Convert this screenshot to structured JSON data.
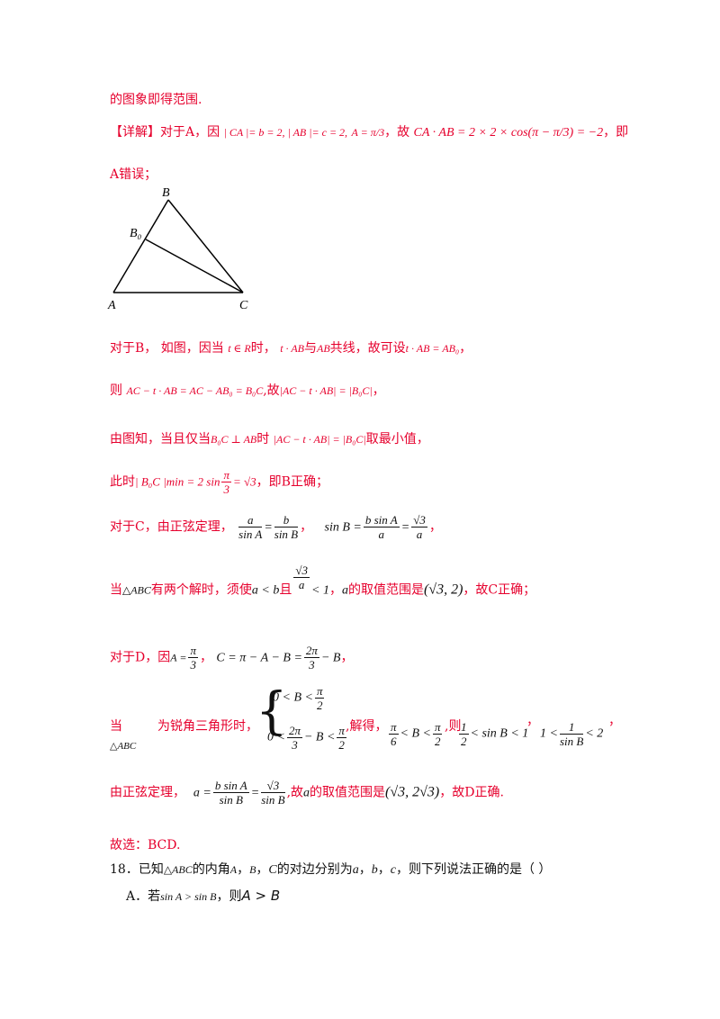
{
  "lines": {
    "l1": "的图象即得范围.",
    "l2_tag": "【详解】",
    "l2_text_a": "对于A，因",
    "l2_math_a": "| CA |= b = 2, | AB |= c = 2,",
    "l2_math_b": "A = π/3",
    "l2_text_b": "，故",
    "l2_math_c": "CA · AB = 2 × 2 × cos(π − π/3) = −2",
    "l2_text_c": "，即",
    "l3": "A错误；",
    "l4_a": "对于B，  如图，因当",
    "l4_m1": "t ∈ R",
    "l4_b": "时，",
    "l4_m2": "t · AB",
    "l4_c": "与",
    "l4_m3": "AB",
    "l4_d": "共线，故可设",
    "l4_m4": "t · AB = AB₀",
    "l4_e": "，",
    "l5_a": "则",
    "l5_m1": "AC − t · AB = AC − AB₀ = B₀C",
    "l5_b": ",故",
    "l5_m2": "|AC − t · AB| = |B₀C|",
    "l5_c": "，",
    "l6_a": "由图知，当且仅当",
    "l6_m1": "B₀C ⊥ AB",
    "l6_b": "时",
    "l6_m2": "|AC − t · AB| = |B₀C|",
    "l6_c": "取最小值，",
    "l7_a": "此时",
    "l7_m1": "| B₀C |min = 2 sin",
    "l7_m2": "= √3",
    "l7_b": "，即B正确；",
    "l8_a": "对于C，由正弦定理，",
    "l8_m1": "sin B =",
    "l8_b": "，",
    "l9_a": "当",
    "l9_m1": "△ABC",
    "l9_b": "有两个解时，须使",
    "l9_m2": "a < b",
    "l9_c": "且",
    "l9_m3": "< 1",
    "l9_d": "，",
    "l9_m4": "a",
    "l9_e": "的取值范围是",
    "l9_m5": "(√3, 2)",
    "l9_f": "，故C正确；",
    "l10_a": "对于D，因",
    "l10_m1": "A =",
    "l10_b": "，",
    "l10_m2": "C = π − A − B =",
    "l10_m3": "− B",
    "l10_c": "，",
    "l11_a": "当",
    "l11_b": "为锐角三角形时，",
    "l11_m1": "△ABC",
    "l11_sys1": "0 < B <",
    "l11_sys2a": "0 <",
    "l11_sys2b": "− B <",
    "l11_c": ",解得，",
    "l11_m2": "< B <",
    "l11_d": ",则",
    "l11_m3": "< sin B < 1",
    "l11_e": "，",
    "l11_m4": "1 <",
    "l11_m5": "< 2",
    "l11_f": "，",
    "l12_a": "由正弦定理，",
    "l12_m1": "a =",
    "l12_m2": "=",
    "l12_b": ",故",
    "l12_m3": "a",
    "l12_c": "的取值范围是",
    "l12_m4": "(√3, 2√3)",
    "l12_d": "，故D正确.",
    "l13": "故选：BCD.",
    "q18_a": "18．已知",
    "q18_m1": "△ABC",
    "q18_b": "的内角",
    "q18_m2": "A",
    "q18_c": "，",
    "q18_m3": "B",
    "q18_d": "，",
    "q18_m4": "C",
    "q18_e": "的对边分别为",
    "q18_m5": "a",
    "q18_f": "，",
    "q18_m6": "b",
    "q18_g": "，",
    "q18_m7": "c",
    "q18_h": "，则下列说法正确的是（    ）",
    "optA_a": "A．若",
    "optA_m1": "sin A > sin B",
    "optA_b": "，则",
    "optA_m2": "A > B"
  },
  "fractions": {
    "pi": "π",
    "three": "3",
    "two": "2",
    "six": "6",
    "one": "1",
    "a": "a",
    "b": "b",
    "sinA": "sin A",
    "sinB": "sin B",
    "bsinA": "b sin A",
    "sqrt3": "√3",
    "twopi": "2π"
  },
  "figure": {
    "label_B": "B",
    "label_B0": "B₀",
    "label_A": "A",
    "label_C": "C"
  }
}
